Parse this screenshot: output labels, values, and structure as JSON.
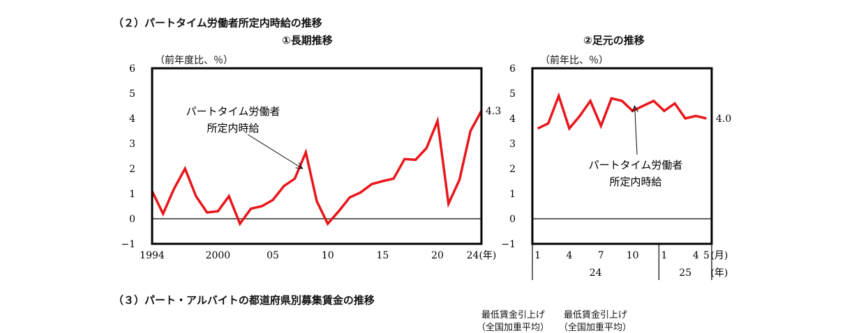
{
  "section2_title": "（２）パートタイム労働者所定内時給の推移",
  "section3_title": "（３）パート・アルバイトの都道府県別募集賃金の推移",
  "footer_labels": {
    "label1_line1": "最低賃金引上げ",
    "label1_line2": "（全国加重平均）",
    "label2_line1": "最低賃金引上げ",
    "label2_line2": "（全国加重平均）"
  },
  "chart_data": [
    {
      "type": "line",
      "title": "①長期推移",
      "ylabel": "（前年度比、％）",
      "ylim": [
        -1,
        6
      ],
      "yticks": [
        -1,
        0,
        1,
        2,
        3,
        4,
        5,
        6
      ],
      "xlim": [
        1994,
        2024
      ],
      "xtick_labels": [
        {
          "x": 1994,
          "label": "1994"
        },
        {
          "x": 2000,
          "label": "2000"
        },
        {
          "x": 2005,
          "label": "05"
        },
        {
          "x": 2010,
          "label": "10"
        },
        {
          "x": 2015,
          "label": "15"
        },
        {
          "x": 2020,
          "label": "20"
        },
        {
          "x": 2024,
          "label": "24(年)"
        }
      ],
      "series": [
        {
          "name": "パートタイム労働者所定内時給",
          "color": "#e8161b",
          "x": [
            1994,
            1995,
            1996,
            1997,
            1998,
            1999,
            2000,
            2001,
            2002,
            2003,
            2004,
            2005,
            2006,
            2007,
            2008,
            2009,
            2010,
            2011,
            2012,
            2013,
            2014,
            2015,
            2016,
            2017,
            2018,
            2019,
            2020,
            2021,
            2022,
            2023,
            2024
          ],
          "values": [
            1.1,
            0.2,
            1.2,
            2.0,
            0.9,
            0.25,
            0.3,
            0.9,
            -0.2,
            0.4,
            0.5,
            0.75,
            1.3,
            1.6,
            2.65,
            0.7,
            -0.2,
            0.3,
            0.85,
            1.05,
            1.38,
            1.5,
            1.6,
            2.38,
            2.35,
            2.82,
            3.9,
            0.6,
            1.55,
            3.5,
            4.3
          ]
        }
      ],
      "annotation_line1": "パートタイム労働者",
      "annotation_line2": "所定内時給",
      "end_value_label": "4.3"
    },
    {
      "type": "line",
      "title": "②足元の推移",
      "ylabel": "（前年比、％）",
      "ylim": [
        -1,
        6
      ],
      "yticks": [
        -1,
        0,
        1,
        2,
        3,
        4,
        5,
        6
      ],
      "xlim": [
        0.5,
        17.5
      ],
      "month_tick_labels": [
        {
          "x": 1,
          "label": "1"
        },
        {
          "x": 4,
          "label": "4"
        },
        {
          "x": 7,
          "label": "7"
        },
        {
          "x": 10,
          "label": "10"
        },
        {
          "x": 13,
          "label": "1"
        },
        {
          "x": 16,
          "label": "4"
        },
        {
          "x": 17,
          "label": "5"
        }
      ],
      "month_unit": "(月)",
      "year_labels": [
        {
          "x": 6.5,
          "label": "24"
        },
        {
          "x": 15,
          "label": "25"
        }
      ],
      "year_unit": "(年)",
      "series": [
        {
          "name": "パートタイム労働者所定内時給",
          "color": "#e8161b",
          "x": [
            1,
            2,
            3,
            4,
            5,
            6,
            7,
            8,
            9,
            10,
            11,
            12,
            13,
            14,
            15,
            16,
            17
          ],
          "values": [
            3.6,
            3.8,
            4.9,
            3.6,
            4.1,
            4.7,
            3.7,
            4.8,
            4.7,
            4.3,
            4.5,
            4.7,
            4.3,
            4.6,
            4.0,
            4.1,
            4.0
          ]
        }
      ],
      "annotation_line1": "パートタイム労働者",
      "annotation_line2": "所定内時給",
      "end_value_label": "4.0"
    }
  ]
}
